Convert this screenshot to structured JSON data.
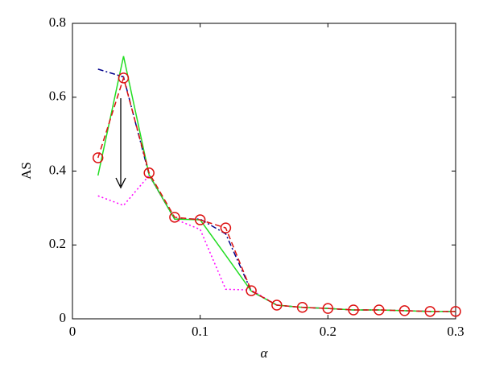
{
  "chart_data": {
    "type": "line",
    "x_label": "α",
    "y_label": "AS",
    "x": [
      0.02,
      0.04,
      0.06,
      0.08,
      0.1,
      0.12,
      0.14,
      0.16,
      0.18,
      0.2,
      0.22,
      0.24,
      0.26,
      0.28,
      0.3
    ],
    "series": [
      {
        "color": "#ff00ff",
        "dash": "dotted",
        "marker": "none",
        "values": [
          0.333,
          0.307,
          0.388,
          0.27,
          0.242,
          0.08,
          0.078,
          0.037,
          0.031,
          0.028,
          0.024,
          0.024,
          0.022,
          0.02,
          0.02
        ]
      },
      {
        "color": "#00008b",
        "dash": "dashdot",
        "marker": "none",
        "values": [
          0.676,
          0.655,
          0.39,
          0.27,
          0.27,
          0.23,
          0.075,
          0.037,
          0.031,
          0.028,
          0.024,
          0.024,
          0.022,
          0.02,
          0.02
        ]
      },
      {
        "color": "#22dd22",
        "dash": "solid",
        "marker": "none",
        "values": [
          0.388,
          0.711,
          0.39,
          0.27,
          0.268,
          0.172,
          0.075,
          0.037,
          0.031,
          0.028,
          0.024,
          0.024,
          0.022,
          0.02,
          0.02
        ]
      },
      {
        "color": "#dd1111",
        "dash": "dashed",
        "marker": "circle",
        "values": [
          0.436,
          0.652,
          0.395,
          0.275,
          0.268,
          0.246,
          0.076,
          0.037,
          0.031,
          0.028,
          0.024,
          0.024,
          0.022,
          0.02,
          0.02
        ]
      }
    ],
    "xlim": [
      0,
      0.3
    ],
    "xticks": [
      0,
      0.1,
      0.2,
      0.3
    ],
    "ylim": [
      0,
      0.8
    ],
    "yticks": [
      0,
      0.2,
      0.4,
      0.6,
      0.8
    ],
    "grid": false
  }
}
